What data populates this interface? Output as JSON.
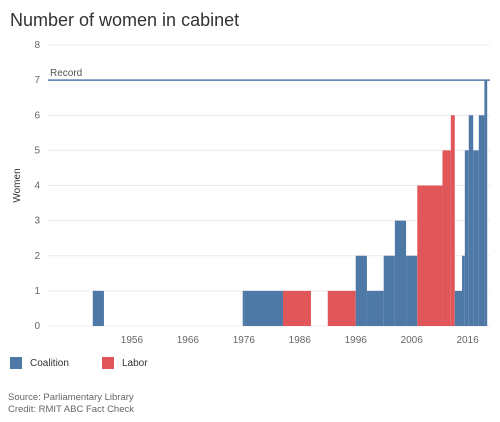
{
  "chart_data": {
    "type": "area",
    "title": "Number of women in cabinet",
    "ylabel": "Women",
    "xlabel": "",
    "ylim": [
      0,
      8
    ],
    "xlim": [
      1941,
      2020
    ],
    "y_ticks": [
      "0",
      "1",
      "2",
      "3",
      "4",
      "5",
      "6",
      "7",
      "8"
    ],
    "x_ticks": [
      {
        "value": 1956,
        "label": "1956"
      },
      {
        "value": 1966,
        "label": "1966"
      },
      {
        "value": 1976,
        "label": "1976"
      },
      {
        "value": 1986,
        "label": "1986"
      },
      {
        "value": 1996,
        "label": "1996"
      },
      {
        "value": 2006,
        "label": "2006"
      },
      {
        "value": 2016,
        "label": "2016"
      }
    ],
    "reference_line": {
      "value": 7,
      "label": "Record"
    },
    "grid": "horizontal",
    "colors": {
      "Coalition": "#4e79a7",
      "Labor": "#e15759",
      "record_line": "#4e79a7"
    },
    "segments": [
      {
        "party": "Coalition",
        "start": 1949,
        "end": 1951,
        "value": 1
      },
      {
        "party": "Coalition",
        "start": 1975.8,
        "end": 1976.2,
        "value": 1
      },
      {
        "party": "Coalition",
        "start": 1976.2,
        "end": 1983,
        "value": 1
      },
      {
        "party": "Labor",
        "start": 1983,
        "end": 1988,
        "value": 1
      },
      {
        "party": "Labor",
        "start": 1991,
        "end": 1996,
        "value": 1
      },
      {
        "party": "Coalition",
        "start": 1996,
        "end": 1998,
        "value": 2
      },
      {
        "party": "Coalition",
        "start": 1998,
        "end": 2001,
        "value": 1
      },
      {
        "party": "Coalition",
        "start": 2001,
        "end": 2003,
        "value": 2
      },
      {
        "party": "Coalition",
        "start": 2003,
        "end": 2005,
        "value": 3
      },
      {
        "party": "Coalition",
        "start": 2005,
        "end": 2007,
        "value": 2
      },
      {
        "party": "Labor",
        "start": 2007,
        "end": 2011.5,
        "value": 4
      },
      {
        "party": "Labor",
        "start": 2011.5,
        "end": 2013,
        "value": 5
      },
      {
        "party": "Labor",
        "start": 2013,
        "end": 2013.7,
        "value": 6
      },
      {
        "party": "Coalition",
        "start": 2013.7,
        "end": 2015,
        "value": 1
      },
      {
        "party": "Coalition",
        "start": 2015,
        "end": 2015.5,
        "value": 2
      },
      {
        "party": "Coalition",
        "start": 2015.5,
        "end": 2016.2,
        "value": 5
      },
      {
        "party": "Coalition",
        "start": 2016.2,
        "end": 2017,
        "value": 6
      },
      {
        "party": "Coalition",
        "start": 2017,
        "end": 2018,
        "value": 5
      },
      {
        "party": "Coalition",
        "start": 2018,
        "end": 2019,
        "value": 6
      },
      {
        "party": "Coalition",
        "start": 2019,
        "end": 2019.5,
        "value": 7
      }
    ]
  },
  "legend": [
    {
      "label": "Coalition",
      "color": "#4e79a7"
    },
    {
      "label": "Labor",
      "color": "#e15759"
    }
  ],
  "footer": {
    "source": "Source: Parliamentary Library",
    "credit": "Credit: RMIT ABC Fact Check"
  }
}
